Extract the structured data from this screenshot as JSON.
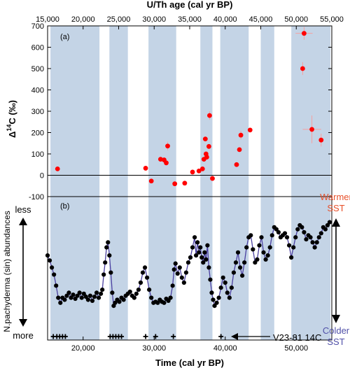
{
  "chart_data": [
    {
      "panel_label": "(a)",
      "type": "scatter",
      "top_axis_title": "U/Th age (cal yr BP)",
      "top_ticks": [
        "15,000",
        "20,000",
        "25,000",
        "30,000",
        "35,000",
        "40,000",
        "45,000",
        "50,000",
        "55,000"
      ],
      "top_tick_values": [
        15000,
        20000,
        25000,
        30000,
        35000,
        40000,
        45000,
        50000,
        55000
      ],
      "xlim": [
        15000,
        55000
      ],
      "ylabel_main": "Δ",
      "ylabel_sup": "14",
      "ylabel_rest": "C (‰)",
      "ylim": [
        -100,
        700
      ],
      "y_ticks": [
        "-100",
        "0",
        "100",
        "200",
        "300",
        "400",
        "500",
        "600",
        "700"
      ],
      "y_tick_values": [
        -100,
        0,
        100,
        200,
        300,
        400,
        500,
        600,
        700
      ],
      "zero_line": true,
      "marker_color": "#ff0000",
      "error_color": "#f4a0a0",
      "points": [
        {
          "x": 16400,
          "y": 30
        },
        {
          "x": 28800,
          "y": 33
        },
        {
          "x": 29600,
          "y": -27
        },
        {
          "x": 30900,
          "y": 75
        },
        {
          "x": 31400,
          "y": 72
        },
        {
          "x": 31700,
          "y": 58
        },
        {
          "x": 31900,
          "y": 137,
          "yerr": 20
        },
        {
          "x": 32900,
          "y": -40
        },
        {
          "x": 34300,
          "y": -37
        },
        {
          "x": 35400,
          "y": 15
        },
        {
          "x": 36300,
          "y": 20
        },
        {
          "x": 36800,
          "y": 30
        },
        {
          "x": 37000,
          "y": 75
        },
        {
          "x": 37200,
          "y": 170
        },
        {
          "x": 37300,
          "y": 100
        },
        {
          "x": 37400,
          "y": 85
        },
        {
          "x": 37700,
          "y": 135
        },
        {
          "x": 37800,
          "y": 280,
          "yerr": 20
        },
        {
          "x": 38200,
          "y": -15
        },
        {
          "x": 41600,
          "y": 50
        },
        {
          "x": 42000,
          "y": 120
        },
        {
          "x": 42200,
          "y": 188,
          "yerr": 20
        },
        {
          "x": 43500,
          "y": 212
        },
        {
          "x": 50900,
          "y": 500,
          "yerr": 30
        },
        {
          "x": 51100,
          "y": 665,
          "xerr": 1200,
          "yerr": 30
        },
        {
          "x": 52200,
          "y": 215,
          "xerr": 1300,
          "yerr": 65
        },
        {
          "x": 53500,
          "y": 165,
          "yerr": 30
        }
      ]
    },
    {
      "panel_label": "(b)",
      "type": "line",
      "xlabel": "Time (cal yr BP)",
      "x_ticks": [
        "20,000",
        "30,000",
        "40,000",
        "50,000"
      ],
      "x_tick_values": [
        20000,
        30000,
        40000,
        50000
      ],
      "xlim": [
        15000,
        55000
      ],
      "ylabel": "N.pachyderma (sin) abundances",
      "y_top_label": "less",
      "y_bottom_label": "more",
      "right_top_label": [
        "Warmer",
        "SST"
      ],
      "right_bottom_label": [
        "Colder",
        "SST"
      ],
      "right_top_color": "#e8502a",
      "right_bottom_color": "#5050a8",
      "line_color": "#4a3fa0",
      "marker_color": "#000000",
      "relative_ylim": [
        0,
        1
      ],
      "series": [
        {
          "x": 15000,
          "y": 0.52
        },
        {
          "x": 15300,
          "y": 0.47
        },
        {
          "x": 15600,
          "y": 0.4
        },
        {
          "x": 15900,
          "y": 0.33
        },
        {
          "x": 16200,
          "y": 0.22
        },
        {
          "x": 16500,
          "y": 0.1
        },
        {
          "x": 16800,
          "y": 0.05
        },
        {
          "x": 17100,
          "y": 0.1
        },
        {
          "x": 17400,
          "y": 0.08
        },
        {
          "x": 17700,
          "y": 0.12
        },
        {
          "x": 18000,
          "y": 0.15
        },
        {
          "x": 18300,
          "y": 0.1
        },
        {
          "x": 18600,
          "y": 0.13
        },
        {
          "x": 18900,
          "y": 0.09
        },
        {
          "x": 19200,
          "y": 0.12
        },
        {
          "x": 19500,
          "y": 0.15
        },
        {
          "x": 19800,
          "y": 0.1
        },
        {
          "x": 20100,
          "y": 0.14
        },
        {
          "x": 20400,
          "y": 0.11
        },
        {
          "x": 20700,
          "y": 0.08
        },
        {
          "x": 21000,
          "y": 0.12
        },
        {
          "x": 21300,
          "y": 0.07
        },
        {
          "x": 21600,
          "y": 0.11
        },
        {
          "x": 21900,
          "y": 0.15
        },
        {
          "x": 22200,
          "y": 0.1
        },
        {
          "x": 22500,
          "y": 0.14
        },
        {
          "x": 22700,
          "y": 0.18
        },
        {
          "x": 22900,
          "y": 0.33
        },
        {
          "x": 23100,
          "y": 0.45
        },
        {
          "x": 23300,
          "y": 0.6
        },
        {
          "x": 23500,
          "y": 0.65
        },
        {
          "x": 23700,
          "y": 0.52
        },
        {
          "x": 23900,
          "y": 0.35
        },
        {
          "x": 24100,
          "y": 0.15
        },
        {
          "x": 24300,
          "y": 0.02
        },
        {
          "x": 24500,
          "y": 0.05
        },
        {
          "x": 24800,
          "y": 0.08
        },
        {
          "x": 25100,
          "y": 0.06
        },
        {
          "x": 25400,
          "y": 0.1
        },
        {
          "x": 25700,
          "y": 0.08
        },
        {
          "x": 26000,
          "y": 0.12
        },
        {
          "x": 26300,
          "y": 0.14
        },
        {
          "x": 26600,
          "y": 0.16
        },
        {
          "x": 26900,
          "y": 0.12
        },
        {
          "x": 27200,
          "y": 0.1
        },
        {
          "x": 27500,
          "y": 0.14
        },
        {
          "x": 27800,
          "y": 0.18
        },
        {
          "x": 28100,
          "y": 0.25
        },
        {
          "x": 28400,
          "y": 0.35
        },
        {
          "x": 28700,
          "y": 0.4
        },
        {
          "x": 29000,
          "y": 0.3
        },
        {
          "x": 29300,
          "y": 0.18
        },
        {
          "x": 29600,
          "y": 0.1
        },
        {
          "x": 29900,
          "y": 0.05
        },
        {
          "x": 30200,
          "y": 0.06
        },
        {
          "x": 30500,
          "y": 0.05
        },
        {
          "x": 30800,
          "y": 0.08
        },
        {
          "x": 31100,
          "y": 0.06
        },
        {
          "x": 31400,
          "y": 0.05
        },
        {
          "x": 31700,
          "y": 0.09
        },
        {
          "x": 32000,
          "y": 0.07
        },
        {
          "x": 32300,
          "y": 0.1
        },
        {
          "x": 32600,
          "y": 0.22
        },
        {
          "x": 32800,
          "y": 0.38
        },
        {
          "x": 33000,
          "y": 0.44
        },
        {
          "x": 33300,
          "y": 0.34
        },
        {
          "x": 33600,
          "y": 0.4
        },
        {
          "x": 33900,
          "y": 0.3
        },
        {
          "x": 34200,
          "y": 0.25
        },
        {
          "x": 34500,
          "y": 0.35
        },
        {
          "x": 34800,
          "y": 0.45
        },
        {
          "x": 35100,
          "y": 0.5
        },
        {
          "x": 35400,
          "y": 0.6
        },
        {
          "x": 35700,
          "y": 0.7
        },
        {
          "x": 35900,
          "y": 0.52
        },
        {
          "x": 36100,
          "y": 0.65
        },
        {
          "x": 36300,
          "y": 0.55
        },
        {
          "x": 36500,
          "y": 0.6
        },
        {
          "x": 36700,
          "y": 0.5
        },
        {
          "x": 36900,
          "y": 0.45
        },
        {
          "x": 37100,
          "y": 0.55
        },
        {
          "x": 37300,
          "y": 0.48
        },
        {
          "x": 37500,
          "y": 0.62
        },
        {
          "x": 37700,
          "y": 0.4
        },
        {
          "x": 37900,
          "y": 0.28
        },
        {
          "x": 38100,
          "y": 0.15
        },
        {
          "x": 38300,
          "y": 0.08
        },
        {
          "x": 38500,
          "y": 0.02
        },
        {
          "x": 38800,
          "y": 0.05
        },
        {
          "x": 39100,
          "y": 0.1
        },
        {
          "x": 39400,
          "y": 0.2
        },
        {
          "x": 39700,
          "y": 0.3
        },
        {
          "x": 40000,
          "y": 0.25
        },
        {
          "x": 40300,
          "y": 0.15
        },
        {
          "x": 40600,
          "y": 0.1
        },
        {
          "x": 40900,
          "y": 0.2
        },
        {
          "x": 41200,
          "y": 0.35
        },
        {
          "x": 41500,
          "y": 0.45
        },
        {
          "x": 41800,
          "y": 0.55
        },
        {
          "x": 42100,
          "y": 0.4
        },
        {
          "x": 42400,
          "y": 0.32
        },
        {
          "x": 42700,
          "y": 0.45
        },
        {
          "x": 43000,
          "y": 0.6
        },
        {
          "x": 43300,
          "y": 0.7
        },
        {
          "x": 43600,
          "y": 0.72
        },
        {
          "x": 43900,
          "y": 0.58
        },
        {
          "x": 44200,
          "y": 0.45
        },
        {
          "x": 44500,
          "y": 0.48
        },
        {
          "x": 44800,
          "y": 0.62
        },
        {
          "x": 45100,
          "y": 0.7
        },
        {
          "x": 45400,
          "y": 0.55
        },
        {
          "x": 45700,
          "y": 0.48
        },
        {
          "x": 46000,
          "y": 0.52
        },
        {
          "x": 46300,
          "y": 0.6
        },
        {
          "x": 46600,
          "y": 0.72
        },
        {
          "x": 46900,
          "y": 0.8
        },
        {
          "x": 47200,
          "y": 0.78
        },
        {
          "x": 47500,
          "y": 0.75
        },
        {
          "x": 47800,
          "y": 0.7
        },
        {
          "x": 48100,
          "y": 0.72
        },
        {
          "x": 48400,
          "y": 0.74
        },
        {
          "x": 48700,
          "y": 0.7
        },
        {
          "x": 49000,
          "y": 0.62
        },
        {
          "x": 49300,
          "y": 0.5
        },
        {
          "x": 49600,
          "y": 0.6
        },
        {
          "x": 49900,
          "y": 0.7
        },
        {
          "x": 50200,
          "y": 0.78
        },
        {
          "x": 50500,
          "y": 0.82
        },
        {
          "x": 50800,
          "y": 0.8
        },
        {
          "x": 51100,
          "y": 0.75
        },
        {
          "x": 51400,
          "y": 0.68
        },
        {
          "x": 51700,
          "y": 0.72
        },
        {
          "x": 52000,
          "y": 0.7
        },
        {
          "x": 52300,
          "y": 0.65
        },
        {
          "x": 52600,
          "y": 0.6
        },
        {
          "x": 52900,
          "y": 0.65
        },
        {
          "x": 53200,
          "y": 0.7
        },
        {
          "x": 53500,
          "y": 0.74
        },
        {
          "x": 53800,
          "y": 0.8
        },
        {
          "x": 54100,
          "y": 0.78
        },
        {
          "x": 54400,
          "y": 0.82
        },
        {
          "x": 54700,
          "y": 0.85
        }
      ],
      "c14_dates_label": "V23-81 14C",
      "c14_dates": [
        15800,
        16300,
        16700,
        17100,
        17500,
        23800,
        24200,
        24600,
        25000,
        25400,
        28800,
        30200,
        32700,
        39400
      ]
    }
  ],
  "shaded_intervals": [
    [
      15400,
      22300
    ],
    [
      23700,
      26300
    ],
    [
      29200,
      33100
    ],
    [
      36500,
      38200
    ],
    [
      39300,
      43300
    ],
    [
      45000,
      46900
    ],
    [
      49300,
      54800
    ]
  ],
  "shade_color": "#c4d4e6"
}
